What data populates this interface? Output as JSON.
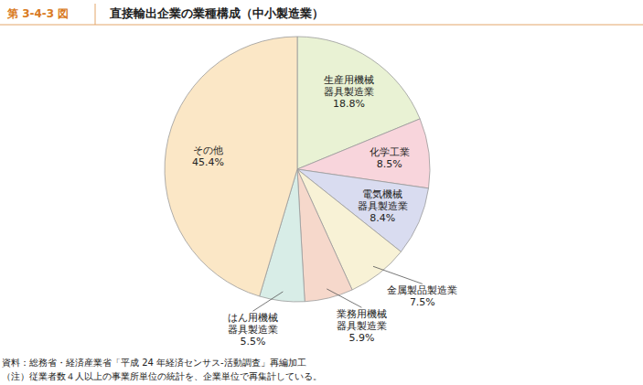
{
  "chart_data": {
    "type": "pie",
    "figure_label": "第 3-4-3 図",
    "title": "直接輸出企業の業種構成（中小製造業）",
    "categories": [
      "生産用機械\n器具製造業",
      "化学工業",
      "電気機械\n器具製造業",
      "金属製品製造業",
      "業務用機械\n器具製造業",
      "はん用機械\n器具製造業",
      "その他"
    ],
    "values": [
      18.8,
      8.5,
      8.4,
      7.5,
      5.9,
      5.5,
      45.4
    ],
    "value_labels": [
      "18.8%",
      "8.5%",
      "8.4%",
      "7.5%",
      "5.9%",
      "5.5%",
      "45.4%"
    ],
    "colors": [
      "#e9f2d4",
      "#f8d5dc",
      "#d9dcf0",
      "#f8f2d6",
      "#f6d8cb",
      "#d8ede7",
      "#fbe7c6"
    ],
    "data_labels": true,
    "source": "資料：総務省・経済産業省「平成 24 年経済センサス-活動調査」再編加工",
    "note": "（注）従業者数４人以上の事業所単位の統計を、企業単位で再集計している。"
  }
}
